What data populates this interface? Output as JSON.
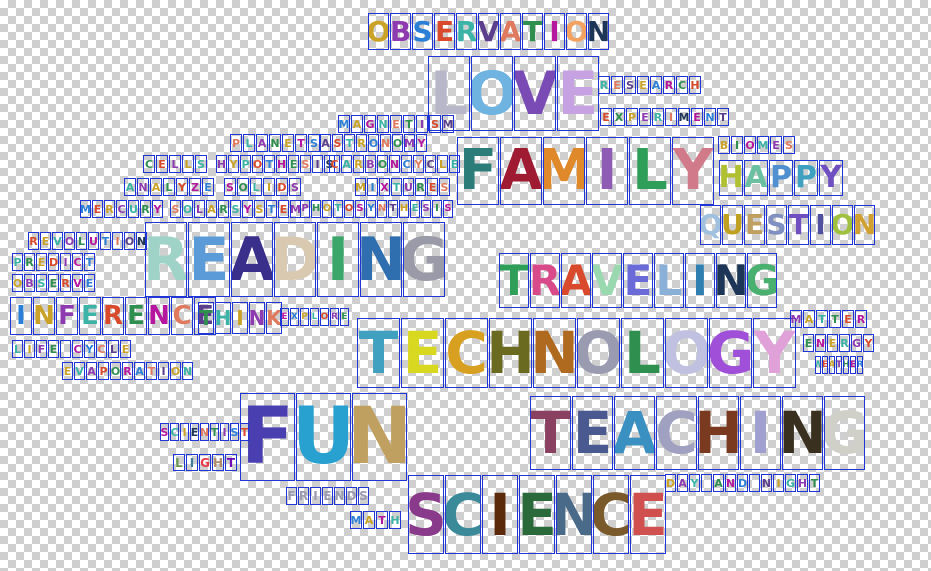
{
  "palette": [
    "#c9a227",
    "#8e3ab0",
    "#2b7fd6",
    "#d84a2b",
    "#3bb3a6",
    "#5b3f8c",
    "#e07a5f",
    "#2f8f4e",
    "#b5179e",
    "#f4a261",
    "#1d3557",
    "#9c6644",
    "#6a994e",
    "#e63946",
    "#457b9d",
    "#a8dadc",
    "#f77f00",
    "#7209b7",
    "#4361ee",
    "#b08968"
  ],
  "words": [
    {
      "text": "OBSERVATION",
      "colors": [
        "#c9a227",
        "#8e3ab0",
        "#2b7fd6",
        "#d84a2b",
        "#3bb3a6",
        "#5b3f8c",
        "#e07a5f",
        "#2f8f4e",
        "#b5179e",
        "#f4a261",
        "#1d3557"
      ]
    },
    {
      "text": "LOVE",
      "colors": [
        "#b7b7c9",
        "#6fb3e0",
        "#7a4bb5",
        "#c6a2e3"
      ]
    },
    {
      "text": "FAMILY",
      "colors": [
        "#2c7d7a",
        "#9e1b32",
        "#e0892a",
        "#8e5bb5",
        "#2f9e58",
        "#d17a8a"
      ]
    },
    {
      "text": "READING",
      "colors": [
        "#9fd3c7",
        "#5a9bd8",
        "#3a2f8a",
        "#d9c9b0",
        "#3aa66a",
        "#2f6fb0",
        "#9a9aa8"
      ]
    },
    {
      "text": "TRAVELING",
      "colors": [
        "#2f9e58",
        "#d84a8a",
        "#d84a2b",
        "#9ad8b0",
        "#6a6ad8",
        "#8ab0d8",
        "#2f7fb0",
        "#1d3557",
        "#4ab070"
      ]
    },
    {
      "text": "TECHNOLOGY",
      "colors": [
        "#3fa0c0",
        "#d8d820",
        "#d8a020",
        "#6a6a20",
        "#b06a20",
        "#9a9ab0",
        "#2f8f4e",
        "#c0c0e0",
        "#a050d8",
        "#e0a0d8"
      ]
    },
    {
      "text": "FUN",
      "colors": [
        "#4a3fb0",
        "#28a0d0",
        "#c0a060"
      ]
    },
    {
      "text": "TEACHING",
      "colors": [
        "#8a4060",
        "#4a5a90",
        "#3a90c0",
        "#a0a0c0",
        "#7a3a20",
        "#a0a0d0",
        "#3a3020",
        "#d0d0c8"
      ]
    },
    {
      "text": "SCIENCE",
      "colors": [
        "#8a3a8a",
        "#3a8a9a",
        "#5a2a0a",
        "#2a6a3a",
        "#4a6a8a",
        "#7a5a2a",
        "#d05050"
      ]
    },
    {
      "text": "HAPPY",
      "colors": [
        "#b0c030",
        "#6ac0a0",
        "#5090d0",
        "#40a0c0",
        "#7050c0"
      ]
    },
    {
      "text": "QUESTION",
      "colors": [
        "#a0c0e0",
        "#c0a020",
        "#c0a060",
        "#8090c0",
        "#7050c0",
        "#5050a0",
        "#a0c040",
        "#d0a030"
      ]
    },
    {
      "text": "FRIENDS",
      "colors": [
        "#9a9ab0",
        "#9a9ab0",
        "#9a9ab0",
        "#9a9ab0",
        "#9a9ab0",
        "#9a9ab0",
        "#9a9ab0"
      ]
    },
    {
      "text": "SCIENTIST",
      "colors": [
        "#b5179e",
        "#3bb3a6",
        "#c9a227",
        "#1d3557",
        "#e07a5f",
        "#2f8f4e",
        "#8e3ab0",
        "#2b7fd6",
        "#d84a2b"
      ]
    },
    {
      "text": "LIGHT",
      "colors": [
        "#6a994e",
        "#457b9d",
        "#e63946",
        "#b08968",
        "#7209b7"
      ]
    },
    {
      "text": "RESEARCH",
      "colors": [
        "#3bb3a6",
        "#e07a5f",
        "#5b3f8c",
        "#c9a227",
        "#2b7fd6",
        "#b5179e",
        "#2f8f4e",
        "#d84a2b"
      ]
    },
    {
      "text": "EXPERIMENT",
      "colors": [
        "#d84a2b",
        "#2f8f4e",
        "#c9a227",
        "#8e3ab0",
        "#3bb3a6",
        "#e07a5f",
        "#1d3557",
        "#b5179e",
        "#2b7fd6",
        "#5b3f8c"
      ]
    },
    {
      "text": "MAGNETISM",
      "colors": [
        "#2b7fd6",
        "#c9a227",
        "#b5179e",
        "#3bb3a6",
        "#e07a5f",
        "#2f8f4e",
        "#8e3ab0",
        "#d84a2b",
        "#5b3f8c"
      ]
    },
    {
      "text": "PLANETS",
      "colors": [
        "#e07a5f",
        "#3bb3a6",
        "#8e3ab0",
        "#2f8f4e",
        "#c9a227",
        "#b5179e",
        "#2b7fd6"
      ]
    },
    {
      "text": "ASTRONOMY",
      "colors": [
        "#5b3f8c",
        "#d84a2b",
        "#3bb3a6",
        "#c9a227",
        "#2b7fd6",
        "#e07a5f",
        "#2f8f4e",
        "#8e3ab0",
        "#b5179e"
      ]
    },
    {
      "text": "BIOMES",
      "colors": [
        "#c9a227",
        "#2f8f4e",
        "#b5179e",
        "#3bb3a6",
        "#8e3ab0",
        "#e07a5f"
      ]
    },
    {
      "text": "CELLS",
      "colors": [
        "#2f8f4e",
        "#d84a2b",
        "#8e3ab0",
        "#c9a227",
        "#3bb3a6"
      ]
    },
    {
      "text": "HYPOTHESIS",
      "colors": [
        "#8e3ab0",
        "#c9a227",
        "#3bb3a6",
        "#d84a2b",
        "#2b7fd6",
        "#b5179e",
        "#2f8f4e",
        "#e07a5f",
        "#5b3f8c",
        "#1d3557"
      ]
    },
    {
      "text": "CARBONCYCLE",
      "colors": [
        "#d84a2b",
        "#3bb3a6",
        "#c9a227",
        "#8e3ab0",
        "#2f8f4e",
        "#b5179e",
        "#2b7fd6",
        "#e07a5f",
        "#5b3f8c",
        "#c9a227",
        "#3bb3a6"
      ]
    },
    {
      "text": "ANALYZE",
      "colors": [
        "#3bb3a6",
        "#8e3ab0",
        "#c9a227",
        "#2f8f4e",
        "#d84a2b",
        "#b5179e",
        "#2b7fd6"
      ]
    },
    {
      "text": "SOLIDS",
      "colors": [
        "#b5179e",
        "#2f8f4e",
        "#3bb3a6",
        "#c9a227",
        "#d84a2b",
        "#8e3ab0"
      ]
    },
    {
      "text": "MIXTURES",
      "colors": [
        "#c9a227",
        "#2b7fd6",
        "#b5179e",
        "#3bb3a6",
        "#8e3ab0",
        "#2f8f4e",
        "#d84a2b",
        "#e07a5f"
      ]
    },
    {
      "text": "MERCURY",
      "colors": [
        "#2b7fd6",
        "#d84a2b",
        "#c9a227",
        "#8e3ab0",
        "#3bb3a6",
        "#2f8f4e",
        "#b5179e"
      ]
    },
    {
      "text": "SOLAR",
      "colors": [
        "#e07a5f",
        "#3bb3a6",
        "#8e3ab0",
        "#c9a227",
        "#2f8f4e"
      ]
    },
    {
      "text": "SYSTEM",
      "colors": [
        "#3bb3a6",
        "#b5179e",
        "#c9a227",
        "#2b7fd6",
        "#d84a2b",
        "#8e3ab0"
      ]
    },
    {
      "text": "PHOTOSYNTHESIS",
      "colors": [
        "#8e3ab0",
        "#2f8f4e",
        "#c9a227",
        "#3bb3a6",
        "#d84a2b",
        "#b5179e",
        "#2b7fd6",
        "#e07a5f",
        "#5b3f8c",
        "#c9a227",
        "#3bb3a6",
        "#8e3ab0",
        "#2f8f4e",
        "#b5179e"
      ]
    },
    {
      "text": "REVOLUTION",
      "colors": [
        "#d84a2b",
        "#c9a227",
        "#3bb3a6",
        "#8e3ab0",
        "#2f8f4e",
        "#b5179e",
        "#2b7fd6",
        "#e07a5f",
        "#5b3f8c",
        "#1d3557"
      ]
    },
    {
      "text": "PREDICT",
      "colors": [
        "#3bb3a6",
        "#2f8f4e",
        "#c9a227",
        "#d84a2b",
        "#8e3ab0",
        "#b5179e",
        "#2b7fd6"
      ]
    },
    {
      "text": "OBSERVE",
      "colors": [
        "#c9a227",
        "#8e3ab0",
        "#3bb3a6",
        "#2f8f4e",
        "#d84a2b",
        "#b5179e",
        "#2b7fd6"
      ]
    },
    {
      "text": "INFERENCE",
      "colors": [
        "#2b7fd6",
        "#c9a227",
        "#8e3ab0",
        "#3bb3a6",
        "#d84a2b",
        "#2f8f4e",
        "#b5179e",
        "#e07a5f",
        "#5b3f8c"
      ]
    },
    {
      "text": "THINK",
      "colors": [
        "#2f8f4e",
        "#3bb3a6",
        "#c9a227",
        "#8e3ab0",
        "#e07a5f"
      ]
    },
    {
      "text": "EXPLORE",
      "colors": [
        "#b5179e",
        "#2b7fd6",
        "#c9a227",
        "#3bb3a6",
        "#d84a2b",
        "#8e3ab0",
        "#2f8f4e"
      ]
    },
    {
      "text": "LIFE CYCLE",
      "colors": [
        "#3bb3a6",
        "#c9a227",
        "#8e3ab0",
        "#2f8f4e",
        "#d84a2b",
        "#b5179e",
        "#2b7fd6",
        "#e07a5f",
        "#5b3f8c",
        "#c9a227"
      ]
    },
    {
      "text": "EVAPORATION",
      "colors": [
        "#c9a227",
        "#3bb3a6",
        "#8e3ab0",
        "#d84a2b",
        "#2f8f4e",
        "#b5179e",
        "#2b7fd6",
        "#e07a5f",
        "#5b3f8c",
        "#c9a227",
        "#3bb3a6"
      ]
    },
    {
      "text": "MATTER",
      "colors": [
        "#8e3ab0",
        "#c9a227",
        "#3bb3a6",
        "#2f8f4e",
        "#d84a2b",
        "#b5179e"
      ]
    },
    {
      "text": "ENERGY",
      "colors": [
        "#2f8f4e",
        "#b5179e",
        "#c9a227",
        "#3bb3a6",
        "#8e3ab0",
        "#d84a2b"
      ]
    },
    {
      "text": "WEATHER",
      "colors": [
        "#3bb3a6",
        "#d84a2b",
        "#c9a227",
        "#8e3ab0",
        "#2f8f4e",
        "#b5179e",
        "#2b7fd6"
      ]
    },
    {
      "text": "DAY AND NIGHT",
      "colors": [
        "#c9a227",
        "#8e3ab0",
        "#3bb3a6",
        "#d84a2b",
        "#2f8f4e",
        "#b5179e",
        "#2b7fd6",
        "#e07a5f",
        "#5b3f8c",
        "#c9a227",
        "#3bb3a6",
        "#8e3ab0",
        "#2f8f4e"
      ]
    },
    {
      "text": "MATH",
      "colors": [
        "#2b7fd6",
        "#c9a227",
        "#b5179e",
        "#3bb3a6"
      ]
    }
  ]
}
